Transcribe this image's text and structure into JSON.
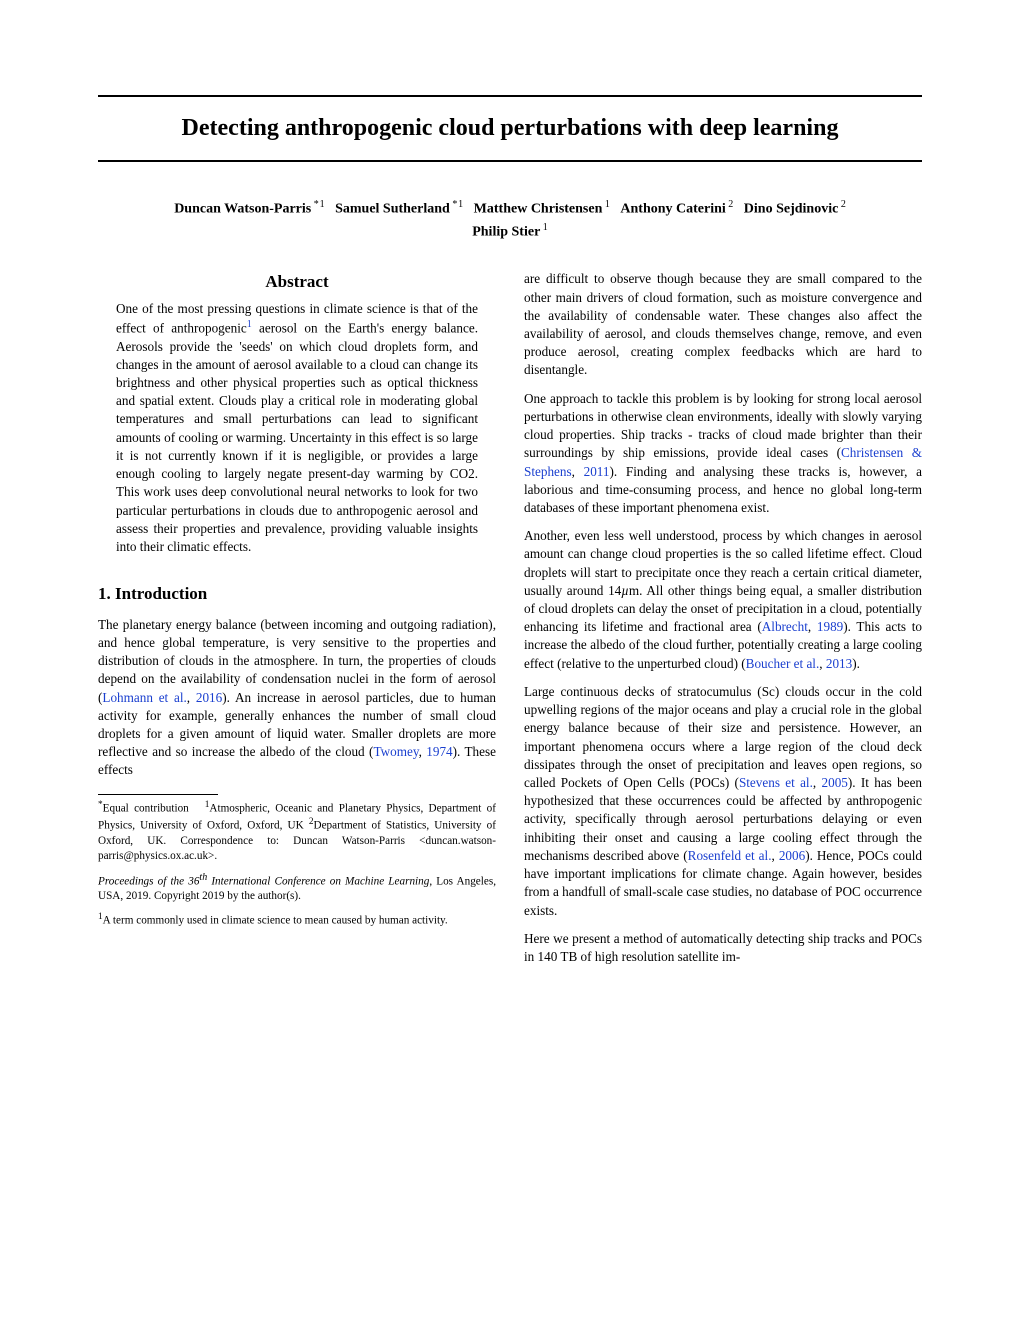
{
  "title": "Detecting anthropogenic cloud perturbations with deep learning",
  "authors_line1_html": "<span class='name'>Duncan Watson-Parris</span><span class='aff'>&nbsp;*&#8202;1</span>&nbsp;&nbsp; <span class='name'>Samuel Sutherland</span><span class='aff'>&nbsp;*&#8202;1</span>&nbsp;&nbsp; <span class='name'>Matthew Christensen</span><span class='aff'>&nbsp;1</span>&nbsp;&nbsp; <span class='name'>Anthony Caterini</span><span class='aff'>&nbsp;2</span>&nbsp;&nbsp; <span class='name'>Dino Sejdinovic</span><span class='aff'>&nbsp;2</span>",
  "authors_line2_html": "<span class='name'>Philip Stier</span><span class='aff'>&nbsp;1</span>",
  "abstract_heading": "Abstract",
  "abstract_body": "One of the most pressing questions in climate science is that of the effect of anthropogenic<sup class='fnmark'>1</sup> aerosol on the Earth's energy balance. Aerosols provide the 'seeds' on which cloud droplets form, and changes in the amount of aerosol available to a cloud can change its brightness and other physical properties such as optical thickness and spatial extent. Clouds play a critical role in moderating global temperatures and small perturbations can lead to significant amounts of cooling or warming. Uncertainty in this effect is so large it is not currently known if it is negligible, or provides a large enough cooling to largely negate present-day warming by CO2. This work uses deep convolutional neural networks to look for two particular perturbations in clouds due to anthropogenic aerosol and assess their properties and prevalence, providing valuable insights into their climatic effects.",
  "section1_heading": "1. Introduction",
  "col1_p1": "The planetary energy balance (between incoming and outgoing radiation), and hence global temperature, is very sensitive to the properties and distribution of clouds in the atmosphere. In turn, the properties of clouds depend on the availability of condensation nuclei in the form of aerosol (<span class='cite'>Lohmann et al.</span>, <span class='cite'>2016</span>). An increase in aerosol particles, due to human activity for example, generally enhances the number of small cloud droplets for a given amount of liquid water. Smaller droplets are more reflective and so increase the albedo of the cloud (<span class='cite'>Twomey</span>, <span class='cite'>1974</span>). These effects",
  "footnote_aff": "<sup>*</sup>Equal contribution&nbsp;&nbsp; <sup>1</sup>Atmospheric, Oceanic and Planetary Physics, Department of Physics, University of Oxford, Oxford, UK <sup>2</sup>Department of Statistics, University of Oxford, UK. Correspondence to: Duncan Watson-Parris &lt;duncan.watson-parris@physics.ox.ac.uk&gt;.",
  "footnote_proc": "<span class='ital'>Proceedings of the 36</span><span class='th'>th</span><span class='ital'> International Conference on Machine Learning</span>, Los Angeles, USA, 2019. Copyright 2019 by the author(s).",
  "footnote_1": "<sup>1</sup>A term commonly used in climate science to mean caused by human activity.",
  "col2_p1": "are difficult to observe though because they are small compared to the other main drivers of cloud formation, such as moisture convergence and the availability of condensable water. These changes also affect the availability of aerosol, and clouds themselves change, remove, and even produce aerosol, creating complex feedbacks which are hard to disentangle.",
  "col2_p2": "One approach to tackle this problem is by looking for strong local aerosol perturbations in otherwise clean environments, ideally with slowly varying cloud properties. Ship tracks - tracks of cloud made brighter than their surroundings by ship emissions, provide ideal cases (<span class='cite'>Christensen &amp; Stephens</span>, <span class='cite'>2011</span>). Finding and analysing these tracks is, however, a laborious and time-consuming process, and hence no global long-term databases of these important phenomena exist.",
  "col2_p3": "Another, even less well understood, process by which changes in aerosol amount can change cloud properties is the so called lifetime effect. Cloud droplets will start to precipitate once they reach a certain critical diameter, usually around 14<span class='ital'>µ</span>m. All other things being equal, a smaller distribution of cloud droplets can delay the onset of precipitation in a cloud, potentially enhancing its lifetime and fractional area (<span class='cite'>Albrecht</span>, <span class='cite'>1989</span>). This acts to increase the albedo of the cloud further, potentially creating a large cooling effect (relative to the unperturbed cloud) (<span class='cite'>Boucher et al.</span>, <span class='cite'>2013</span>).",
  "col2_p4": "Large continuous decks of stratocumulus (Sc) clouds occur in the cold upwelling regions of the major oceans and play a crucial role in the global energy balance because of their size and persistence. However, an important phenomena occurs where a large region of the cloud deck dissipates through the onset of precipitation and leaves open regions, so called Pockets of Open Cells (POCs) (<span class='cite'>Stevens et al.</span>, <span class='cite'>2005</span>). It has been hypothesized that these occurrences could be affected by anthropogenic activity, specifically through aerosol perturbations delaying or even inhibiting their onset and causing a large cooling effect through the mechanisms described above (<span class='cite'>Rosenfeld et al.</span>, <span class='cite'>2006</span>). Hence, POCs could have important implications for climate change. Again however, besides from a handfull of small-scale case studies, no database of POC occurrence exists.",
  "col2_p5": "Here we present a method of automatically detecting ship tracks and POCs in 140 TB of high resolution satellite im-"
}
